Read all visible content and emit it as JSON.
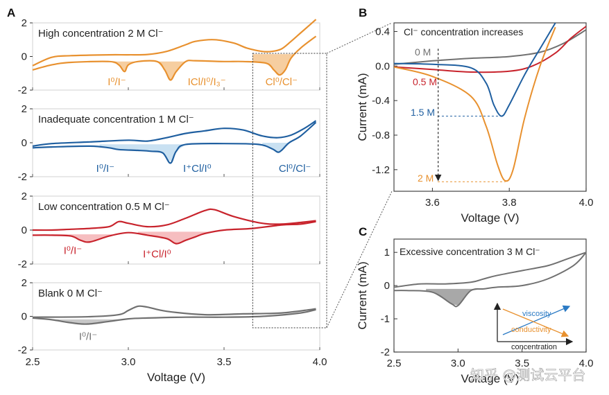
{
  "panel_labels": {
    "a": "A",
    "b": "B",
    "c": "C"
  },
  "watermark": "知乎 @测试云平台",
  "chart_data": [
    {
      "panel": "A",
      "type": "line",
      "xlabel": "Voltage (V)",
      "xlim": [
        2.5,
        4.0
      ],
      "xticks": [
        "2.5",
        "3.0",
        "3.5",
        "4.0"
      ],
      "yticks": [
        "2",
        "0",
        "-2"
      ],
      "ylim": [
        -2,
        2
      ],
      "subplots": [
        {
          "title": "High concentration  2 M Cl⁻",
          "color": "#E8912F",
          "fill": "#F5C68F",
          "upper": [
            [
              2.5,
              -0.55
            ],
            [
              2.6,
              -0.05
            ],
            [
              2.7,
              0.05
            ],
            [
              2.9,
              0.1
            ],
            [
              3.0,
              0.1
            ],
            [
              3.1,
              0.12
            ],
            [
              3.2,
              0.3
            ],
            [
              3.3,
              0.7
            ],
            [
              3.35,
              0.9
            ],
            [
              3.45,
              1.0
            ],
            [
              3.55,
              0.8
            ],
            [
              3.62,
              0.5
            ],
            [
              3.7,
              0.3
            ],
            [
              3.75,
              0.3
            ],
            [
              3.8,
              0.45
            ],
            [
              3.85,
              0.9
            ],
            [
              3.9,
              1.4
            ],
            [
              3.95,
              1.9
            ],
            [
              3.98,
              2.2
            ]
          ],
          "lower": [
            [
              3.98,
              1.2
            ],
            [
              3.9,
              0.5
            ],
            [
              3.85,
              -0.1
            ],
            [
              3.82,
              -0.8
            ],
            [
              3.79,
              -1.1
            ],
            [
              3.76,
              -0.8
            ],
            [
              3.72,
              -0.4
            ],
            [
              3.6,
              -0.3
            ],
            [
              3.5,
              -0.3
            ],
            [
              3.35,
              -0.25
            ],
            [
              3.3,
              -0.3
            ],
            [
              3.25,
              -0.9
            ],
            [
              3.22,
              -1.4
            ],
            [
              3.19,
              -0.8
            ],
            [
              3.15,
              -0.3
            ],
            [
              3.05,
              -0.3
            ],
            [
              3.0,
              -0.5
            ],
            [
              2.98,
              -0.9
            ],
            [
              2.95,
              -0.5
            ],
            [
              2.9,
              -0.3
            ],
            [
              2.7,
              -0.35
            ],
            [
              2.6,
              -0.5
            ],
            [
              2.5,
              -0.8
            ]
          ],
          "fills": [
            [
              2.88,
              3.05
            ],
            [
              3.12,
              3.3
            ],
            [
              3.65,
              3.87
            ]
          ],
          "annotations": [
            {
              "text": "I⁰/I⁻",
              "x": 2.94,
              "y": -1.5
            },
            {
              "text": "ICl/I⁰/I₃⁻",
              "x": 3.41,
              "y": -1.5
            },
            {
              "text": "Cl⁰/Cl⁻",
              "x": 3.8,
              "y": -1.5
            }
          ]
        },
        {
          "title": "Inadequate concentration 1 M Cl⁻",
          "color": "#1F5FA0",
          "fill": "#BFDCF0",
          "upper": [
            [
              2.5,
              -0.2
            ],
            [
              2.6,
              -0.05
            ],
            [
              2.8,
              0.05
            ],
            [
              3.0,
              0.15
            ],
            [
              3.1,
              0.1
            ],
            [
              3.2,
              0.3
            ],
            [
              3.3,
              0.55
            ],
            [
              3.4,
              0.7
            ],
            [
              3.5,
              0.85
            ],
            [
              3.6,
              0.75
            ],
            [
              3.7,
              0.4
            ],
            [
              3.78,
              0.3
            ],
            [
              3.85,
              0.45
            ],
            [
              3.92,
              0.85
            ],
            [
              3.98,
              1.3
            ]
          ],
          "lower": [
            [
              3.98,
              1.2
            ],
            [
              3.9,
              0.4
            ],
            [
              3.84,
              0.0
            ],
            [
              3.8,
              -0.45
            ],
            [
              3.78,
              -0.55
            ],
            [
              3.75,
              -0.35
            ],
            [
              3.68,
              -0.1
            ],
            [
              3.5,
              -0.05
            ],
            [
              3.3,
              -0.1
            ],
            [
              3.25,
              -0.5
            ],
            [
              3.22,
              -1.2
            ],
            [
              3.18,
              -0.6
            ],
            [
              3.12,
              -0.5
            ],
            [
              3.05,
              -0.45
            ],
            [
              2.95,
              -0.4
            ],
            [
              2.9,
              -0.3
            ],
            [
              2.8,
              -0.2
            ],
            [
              2.6,
              -0.25
            ],
            [
              2.5,
              -0.3
            ]
          ],
          "fills": [
            [
              2.85,
              3.32
            ],
            [
              3.7,
              3.84
            ]
          ],
          "annotations": [
            {
              "text": "I⁰/I⁻",
              "x": 2.88,
              "y": -1.5
            },
            {
              "text": "I⁺Cl/I⁰",
              "x": 3.36,
              "y": -1.5
            },
            {
              "text": "Cl⁰/Cl⁻",
              "x": 3.87,
              "y": -1.5
            }
          ]
        },
        {
          "title": "Low concentration 0.5 M Cl⁻",
          "color": "#C8232C",
          "fill": "#F4B3B5",
          "upper": [
            [
              2.5,
              0.0
            ],
            [
              2.6,
              0.0
            ],
            [
              2.7,
              0.05
            ],
            [
              2.8,
              0.1
            ],
            [
              2.9,
              0.2
            ],
            [
              2.95,
              0.5
            ],
            [
              3.0,
              0.4
            ],
            [
              3.1,
              0.2
            ],
            [
              3.2,
              0.3
            ],
            [
              3.3,
              0.7
            ],
            [
              3.4,
              1.15
            ],
            [
              3.45,
              1.2
            ],
            [
              3.55,
              0.8
            ],
            [
              3.7,
              0.4
            ],
            [
              3.8,
              0.35
            ],
            [
              3.9,
              0.45
            ],
            [
              3.98,
              0.55
            ]
          ],
          "lower": [
            [
              3.98,
              0.5
            ],
            [
              3.9,
              0.35
            ],
            [
              3.8,
              0.3
            ],
            [
              3.65,
              0.1
            ],
            [
              3.5,
              0.0
            ],
            [
              3.4,
              -0.2
            ],
            [
              3.35,
              -0.4
            ],
            [
              3.3,
              -0.6
            ],
            [
              3.25,
              -0.8
            ],
            [
              3.2,
              -0.5
            ],
            [
              3.1,
              -0.3
            ],
            [
              3.0,
              -0.15
            ],
            [
              2.9,
              -0.35
            ],
            [
              2.8,
              -0.7
            ],
            [
              2.75,
              -0.6
            ],
            [
              2.7,
              -0.35
            ],
            [
              2.6,
              -0.3
            ],
            [
              2.5,
              -0.3
            ]
          ],
          "fills": [
            [
              2.6,
              2.95
            ],
            [
              3.05,
              3.45
            ]
          ],
          "annotations": [
            {
              "text": "I⁰/I⁻",
              "x": 2.71,
              "y": -1.2
            },
            {
              "text": "I⁺Cl/I⁰",
              "x": 3.15,
              "y": -1.4
            }
          ]
        },
        {
          "title": "Blank 0 M Cl⁻",
          "color": "#707070",
          "fill": "#BDBDBD",
          "upper": [
            [
              2.5,
              -0.05
            ],
            [
              2.8,
              -0.02
            ],
            [
              2.95,
              0.1
            ],
            [
              3.0,
              0.35
            ],
            [
              3.05,
              0.6
            ],
            [
              3.1,
              0.55
            ],
            [
              3.2,
              0.3
            ],
            [
              3.4,
              0.1
            ],
            [
              3.6,
              0.15
            ],
            [
              3.8,
              0.2
            ],
            [
              3.95,
              0.4
            ],
            [
              3.98,
              0.45
            ]
          ],
          "lower": [
            [
              3.98,
              0.4
            ],
            [
              3.9,
              0.2
            ],
            [
              3.7,
              0.0
            ],
            [
              3.5,
              -0.05
            ],
            [
              3.3,
              -0.05
            ],
            [
              3.1,
              -0.1
            ],
            [
              3.0,
              -0.15
            ],
            [
              2.9,
              -0.3
            ],
            [
              2.8,
              -0.45
            ],
            [
              2.75,
              -0.45
            ],
            [
              2.68,
              -0.35
            ],
            [
              2.6,
              -0.2
            ],
            [
              2.5,
              -0.1
            ]
          ],
          "fills": [
            [
              2.6,
              2.98
            ]
          ],
          "annotations": [
            {
              "text": "I⁰/I⁻",
              "x": 2.79,
              "y": -1.2
            }
          ]
        }
      ]
    },
    {
      "panel": "B",
      "type": "line",
      "title": "Cl⁻ concentration increases",
      "xlabel": "Voltage (V)",
      "ylabel": "Current (mA)",
      "xlim": [
        3.5,
        4.0
      ],
      "ylim": [
        -1.45,
        0.5
      ],
      "xticks": [
        "3.6",
        "3.8",
        "4.0"
      ],
      "yticks": [
        "0.4",
        "0.0",
        "-0.4",
        "-0.8",
        "-1.2"
      ],
      "series": [
        {
          "name": "0 M",
          "color": "#707070",
          "points": [
            [
              3.5,
              0.02
            ],
            [
              3.6,
              0.06
            ],
            [
              3.7,
              0.09
            ],
            [
              3.8,
              0.11
            ],
            [
              3.88,
              0.16
            ],
            [
              3.94,
              0.26
            ],
            [
              4.0,
              0.42
            ]
          ]
        },
        {
          "name": "0.5 M",
          "color": "#C8232C",
          "points": [
            [
              3.5,
              -0.01
            ],
            [
              3.6,
              -0.04
            ],
            [
              3.7,
              -0.07
            ],
            [
              3.8,
              -0.06
            ],
            [
              3.86,
              0.0
            ],
            [
              3.92,
              0.15
            ],
            [
              3.96,
              0.32
            ],
            [
              4.0,
              0.46
            ]
          ]
        },
        {
          "name": "1.5 M",
          "color": "#1F5FA0",
          "points": [
            [
              3.5,
              0.03
            ],
            [
              3.6,
              0.02
            ],
            [
              3.7,
              -0.02
            ],
            [
              3.74,
              -0.2
            ],
            [
              3.76,
              -0.45
            ],
            [
              3.78,
              -0.58
            ],
            [
              3.8,
              -0.45
            ],
            [
              3.84,
              -0.1
            ],
            [
              3.88,
              0.2
            ],
            [
              3.92,
              0.5
            ]
          ]
        },
        {
          "name": "2 M",
          "color": "#E8912F",
          "points": [
            [
              3.5,
              -0.01
            ],
            [
              3.6,
              -0.12
            ],
            [
              3.7,
              -0.35
            ],
            [
              3.74,
              -0.7
            ],
            [
              3.77,
              -1.15
            ],
            [
              3.79,
              -1.33
            ],
            [
              3.81,
              -1.2
            ],
            [
              3.84,
              -0.6
            ],
            [
              3.88,
              0.0
            ],
            [
              3.92,
              0.45
            ]
          ]
        }
      ],
      "markers": [
        {
          "label": "1.5 M",
          "x": 3.78,
          "y": -0.58
        },
        {
          "label": "2 M",
          "x": 3.79,
          "y": -1.34
        }
      ]
    },
    {
      "panel": "C",
      "type": "line",
      "title": "Excessive concentration 3 M Cl⁻",
      "xlabel": "Voltage (V)",
      "ylabel": "Current (mA)",
      "xlim": [
        2.5,
        4.0
      ],
      "ylim": [
        -2,
        1.4
      ],
      "xticks": [
        "2.5",
        "3.0",
        "3.5",
        "4.0"
      ],
      "yticks": [
        "1",
        "0",
        "-1",
        "-2"
      ],
      "color": "#707070",
      "fill": "#9E9E9E",
      "upper": [
        [
          2.5,
          -0.05
        ],
        [
          2.7,
          0.05
        ],
        [
          2.9,
          0.05
        ],
        [
          3.1,
          0.1
        ],
        [
          3.2,
          0.2
        ],
        [
          3.3,
          0.3
        ],
        [
          3.5,
          0.45
        ],
        [
          3.7,
          0.6
        ],
        [
          3.85,
          0.8
        ],
        [
          4.0,
          1.0
        ]
      ],
      "lower": [
        [
          4.0,
          1.0
        ],
        [
          3.9,
          0.6
        ],
        [
          3.7,
          0.2
        ],
        [
          3.5,
          0.0
        ],
        [
          3.3,
          -0.05
        ],
        [
          3.2,
          -0.1
        ],
        [
          3.1,
          -0.15
        ],
        [
          3.0,
          -0.6
        ],
        [
          2.95,
          -0.55
        ],
        [
          2.8,
          -0.2
        ],
        [
          2.6,
          -0.15
        ],
        [
          2.5,
          -0.15
        ]
      ],
      "fills": [
        [
          2.75,
          3.2
        ]
      ],
      "inset": {
        "viscosity": "viscosity",
        "conductivity": "conductivity",
        "concentration": "concentration",
        "viscosity_color": "#2A7AC4",
        "conductivity_color": "#E8912F"
      }
    }
  ]
}
